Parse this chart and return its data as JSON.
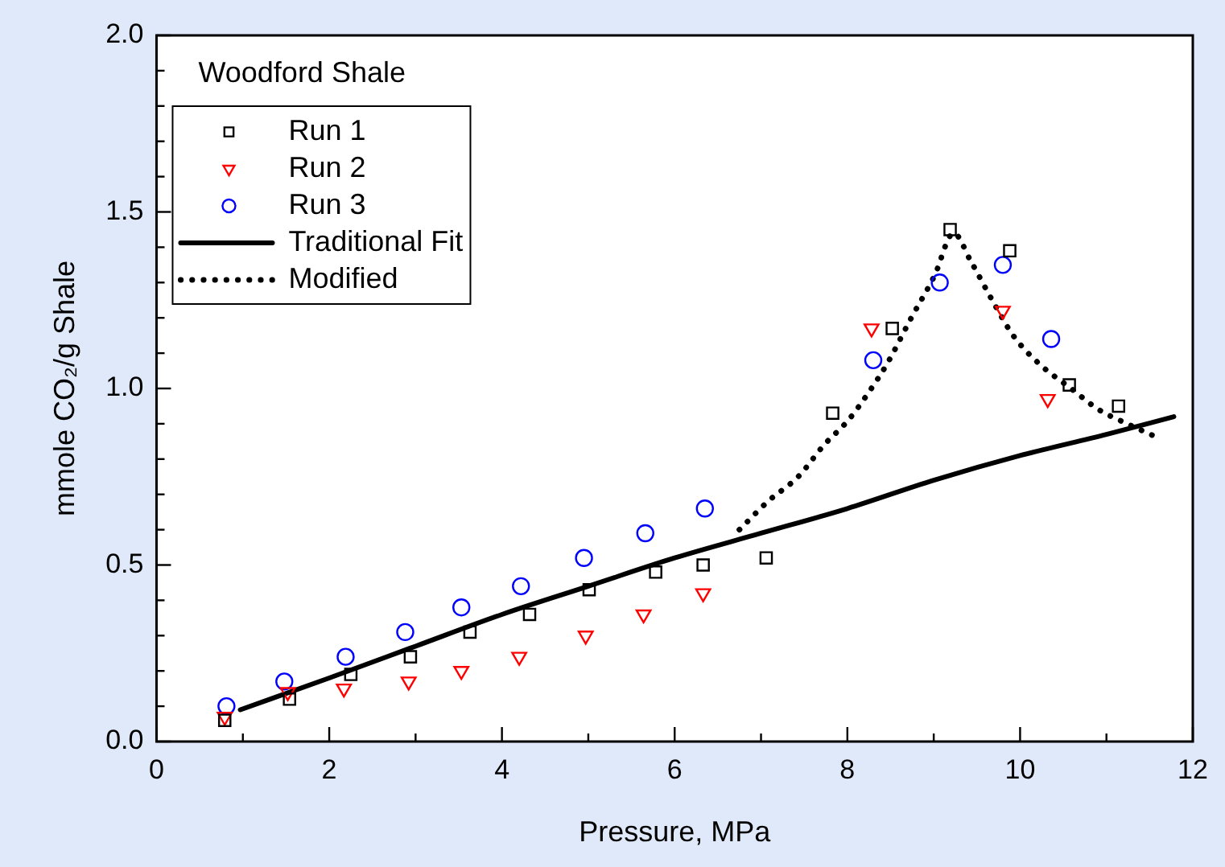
{
  "chart_data": {
    "type": "scatter",
    "xlabel": "Pressure, MPa",
    "ylabel": "mmole CO₂/g Shale",
    "legend_title": "Woodford Shale",
    "legend": "top left",
    "grid": false,
    "xlim": [
      0,
      12
    ],
    "xticks": [
      0,
      {
        "value": 1,
        "label": null
      },
      2,
      {
        "value": 3,
        "label": null
      },
      4,
      {
        "value": 5,
        "label": null
      },
      6,
      {
        "value": 7,
        "label": null
      },
      8,
      {
        "value": 9,
        "label": null
      },
      10,
      {
        "value": 11,
        "label": null
      },
      12
    ],
    "ylim": [
      0,
      2
    ],
    "yticks": [
      {
        "value": 0,
        "label": "0.0"
      },
      {
        "value": 0.1,
        "label": null
      },
      {
        "value": 0.2,
        "label": null
      },
      {
        "value": 0.3,
        "label": null
      },
      {
        "value": 0.4,
        "label": null
      },
      {
        "value": 0.5,
        "label": "0.5"
      },
      {
        "value": 0.6,
        "label": null
      },
      {
        "value": 0.7,
        "label": null
      },
      {
        "value": 0.8,
        "label": null
      },
      {
        "value": 0.9,
        "label": null
      },
      {
        "value": 1,
        "label": "1.0"
      },
      {
        "value": 1.1,
        "label": null
      },
      {
        "value": 1.2,
        "label": null
      },
      {
        "value": 1.3,
        "label": null
      },
      {
        "value": 1.4,
        "label": null
      },
      {
        "value": 1.5,
        "label": "1.5"
      },
      {
        "value": 1.6,
        "label": null
      },
      {
        "value": 1.7,
        "label": null
      },
      {
        "value": 1.8,
        "label": null
      },
      {
        "value": 1.9,
        "label": null
      },
      {
        "value": 2,
        "label": "2.0"
      }
    ],
    "series": [
      {
        "name": "Run 1",
        "type": "scatter",
        "marker": "square",
        "color": "#000000",
        "x": [
          0.79,
          1.54,
          2.25,
          2.94,
          3.63,
          4.32,
          5.01,
          5.78,
          6.33,
          7.06,
          7.83,
          8.52,
          9.19,
          9.88,
          10.57,
          11.14
        ],
        "values": [
          0.06,
          0.12,
          0.19,
          0.24,
          0.31,
          0.36,
          0.43,
          0.48,
          0.5,
          0.52,
          0.93,
          1.17,
          1.45,
          1.39,
          1.01,
          0.95
        ]
      },
      {
        "name": "Run 2",
        "type": "scatter",
        "marker": "triangle",
        "color": "#ff0000",
        "x": [
          0.79,
          1.52,
          2.17,
          2.92,
          3.53,
          4.2,
          4.97,
          5.64,
          6.33,
          8.28,
          9.8,
          10.32
        ],
        "values": [
          0.07,
          0.14,
          0.15,
          0.17,
          0.2,
          0.24,
          0.3,
          0.36,
          0.42,
          1.17,
          1.22,
          0.97
        ]
      },
      {
        "name": "Run 3",
        "type": "scatter",
        "marker": "circle",
        "color": "#0000ff",
        "x": [
          0.81,
          1.48,
          2.19,
          2.88,
          3.53,
          4.22,
          4.95,
          5.66,
          6.35,
          8.3,
          9.07,
          9.8,
          10.36
        ],
        "values": [
          0.1,
          0.17,
          0.24,
          0.31,
          0.38,
          0.44,
          0.52,
          0.59,
          0.66,
          1.08,
          1.3,
          1.35,
          1.14
        ]
      },
      {
        "name": "Traditional Fit",
        "type": "line",
        "line_style": "solid",
        "color": "#000000",
        "x": [
          0.97,
          2,
          3,
          4,
          5,
          6,
          7,
          8,
          9,
          10,
          11,
          11.78
        ],
        "values": [
          0.09,
          0.18,
          0.27,
          0.36,
          0.44,
          0.52,
          0.59,
          0.66,
          0.74,
          0.81,
          0.87,
          0.92
        ]
      },
      {
        "name": "Modified",
        "type": "line",
        "line_style": "dotted",
        "color": "#000000",
        "x": [
          6.75,
          7.08,
          7.43,
          7.73,
          8.01,
          8.25,
          8.46,
          8.74,
          9.01,
          9.23,
          9.43,
          9.7,
          9.92,
          10.22,
          10.59,
          10.91,
          11.24,
          11.6
        ],
        "values": [
          0.6,
          0.68,
          0.75,
          0.84,
          0.91,
          0.99,
          1.07,
          1.2,
          1.32,
          1.44,
          1.36,
          1.24,
          1.15,
          1.07,
          1,
          0.94,
          0.9,
          0.86
        ]
      }
    ]
  }
}
